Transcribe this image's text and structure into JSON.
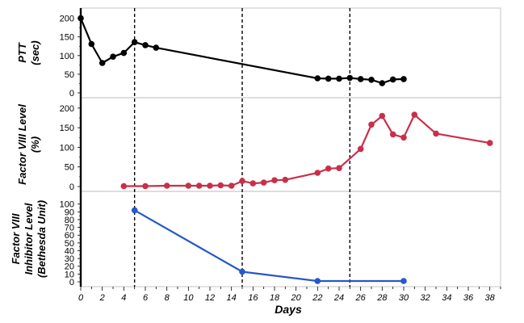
{
  "chart_data": {
    "type": "line",
    "xlabel": "Days",
    "xlim": [
      0,
      39
    ],
    "x_ticks": [
      "0",
      "2",
      "4",
      "6",
      "8",
      "10",
      "12",
      "14",
      "16",
      "18",
      "20",
      "22",
      "24",
      "26",
      "28",
      "30",
      "32",
      "34",
      "36",
      "38"
    ],
    "event_lines_x": [
      5,
      15,
      25
    ],
    "panels": [
      {
        "ylabel_lines": [
          "PTT",
          "(sec)"
        ],
        "ylim": [
          0,
          210
        ],
        "y_ticks": [
          "0",
          "50",
          "100",
          "150",
          "200"
        ],
        "series": [
          {
            "color": "#000000",
            "segments": [
              [
                [
                  0,
                  200
                ],
                [
                  1,
                  131
                ],
                [
                  2,
                  80
                ],
                [
                  3,
                  97
                ],
                [
                  4,
                  107
                ],
                [
                  5,
                  136
                ],
                [
                  6,
                  128
                ],
                [
                  7,
                  121
                ]
              ],
              [
                [
                  22,
                  39
                ],
                [
                  23,
                  38
                ],
                [
                  24,
                  38
                ],
                [
                  25,
                  40
                ],
                [
                  26,
                  37
                ],
                [
                  27,
                  35
                ],
                [
                  28,
                  26
                ],
                [
                  29,
                  36
                ],
                [
                  30,
                  37
                ]
              ]
            ],
            "connect_gaps": true
          }
        ]
      },
      {
        "ylabel_lines": [
          "Factor VIII Level",
          "(%)"
        ],
        "ylim": [
          0,
          210
        ],
        "y_ticks": [
          "0",
          "50",
          "100",
          "150",
          "200"
        ],
        "series": [
          {
            "color": "#c8304a",
            "segments": [
              [
                [
                  4,
                  1
                ],
                [
                  6,
                  1
                ],
                [
                  8,
                  2
                ],
                [
                  10,
                  2
                ],
                [
                  11,
                  2
                ],
                [
                  12,
                  2
                ],
                [
                  13,
                  3
                ],
                [
                  14,
                  2
                ],
                [
                  15,
                  14
                ],
                [
                  16,
                  8
                ],
                [
                  17,
                  10
                ],
                [
                  18,
                  16
                ],
                [
                  19,
                  17
                ],
                [
                  22,
                  35
                ],
                [
                  23,
                  46
                ],
                [
                  24,
                  47
                ],
                [
                  26,
                  96
                ],
                [
                  27,
                  158
                ],
                [
                  28,
                  180
                ],
                [
                  29,
                  133
                ],
                [
                  30,
                  125
                ],
                [
                  31,
                  183
                ],
                [
                  33,
                  135
                ],
                [
                  38,
                  111
                ]
              ]
            ]
          }
        ]
      },
      {
        "ylabel_lines": [
          "Factor VIII",
          "Inhibitor Level",
          "(Bethesda Unit)"
        ],
        "ylim": [
          0,
          108
        ],
        "y_ticks": [
          "0",
          "10",
          "20",
          "30",
          "40",
          "50",
          "60",
          "70",
          "80",
          "90",
          "100"
        ],
        "series": [
          {
            "color": "#2658c8",
            "segments": [
              [
                [
                  5,
                  92
                ],
                [
                  15,
                  13
                ],
                [
                  22,
                  1
                ],
                [
                  30,
                  1
                ]
              ]
            ]
          }
        ]
      }
    ]
  }
}
